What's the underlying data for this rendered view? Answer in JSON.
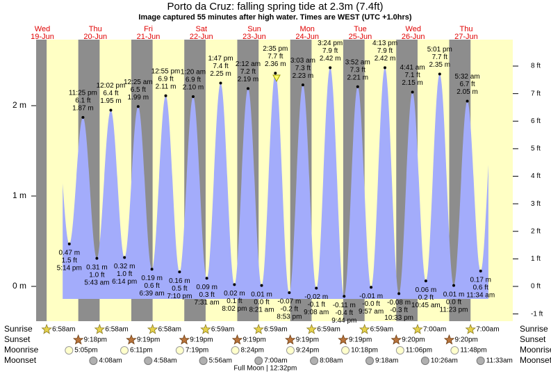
{
  "chart_data": {
    "type": "tide",
    "title": "Porto da Cruz: falling  spring tide at 2.3m (7.4ft)",
    "subtitle": "Image captured 55 minutes after high water. Times are WEST (UTC +1.0hrs)",
    "days": [
      {
        "weekday": "Wed",
        "date": "19-Jun"
      },
      {
        "weekday": "Thu",
        "date": "20-Jun"
      },
      {
        "weekday": "Fri",
        "date": "21-Jun"
      },
      {
        "weekday": "Sat",
        "date": "22-Jun"
      },
      {
        "weekday": "Sun",
        "date": "23-Jun"
      },
      {
        "weekday": "Mon",
        "date": "24-Jun"
      },
      {
        "weekday": "Tue",
        "date": "25-Jun"
      },
      {
        "weekday": "Wed",
        "date": "26-Jun"
      },
      {
        "weekday": "Thu",
        "date": "27-Jun"
      }
    ],
    "tides": [
      {
        "date": "19-Jun",
        "time": "5:14 pm",
        "value": 0.47,
        "value_label": "0.47 m",
        "ft": 1.5,
        "ft_label": "1.5 ft"
      },
      {
        "date": "19-Jun",
        "time": "11:25 pm",
        "value": 1.87,
        "value_label": "1.87 m",
        "ft": 6.1,
        "ft_label": "6.1 ft"
      },
      {
        "date": "20-Jun",
        "time": "5:43 am",
        "value": 0.31,
        "value_label": "0.31 m",
        "ft": 1.0,
        "ft_label": "1.0 ft"
      },
      {
        "date": "20-Jun",
        "time": "12:02 pm",
        "value": 1.95,
        "value_label": "1.95 m",
        "ft": 6.4,
        "ft_label": "6.4 ft"
      },
      {
        "date": "20-Jun",
        "time": "6:14 pm",
        "value": 0.32,
        "value_label": "0.32 m",
        "ft": 1.0,
        "ft_label": "1.0 ft"
      },
      {
        "date": "21-Jun",
        "time": "12:25 am",
        "value": 1.99,
        "value_label": "1.99 m",
        "ft": 6.5,
        "ft_label": "6.5 ft"
      },
      {
        "date": "21-Jun",
        "time": "6:39 am",
        "value": 0.19,
        "value_label": "0.19 m",
        "ft": 0.6,
        "ft_label": "0.6 ft"
      },
      {
        "date": "21-Jun",
        "time": "12:55 pm",
        "value": 2.11,
        "value_label": "2.11 m",
        "ft": 6.9,
        "ft_label": "6.9 ft"
      },
      {
        "date": "21-Jun",
        "time": "7:10 pm",
        "value": 0.16,
        "value_label": "0.16 m",
        "ft": 0.5,
        "ft_label": "0.5 ft"
      },
      {
        "date": "22-Jun",
        "time": "1:20 am",
        "value": 2.1,
        "value_label": "2.10 m",
        "ft": 6.9,
        "ft_label": "6.9 ft"
      },
      {
        "date": "22-Jun",
        "time": "7:31 am",
        "value": 0.09,
        "value_label": "0.09 m",
        "ft": 0.3,
        "ft_label": "0.3 ft"
      },
      {
        "date": "22-Jun",
        "time": "1:47 pm",
        "value": 2.25,
        "value_label": "2.25 m",
        "ft": 7.4,
        "ft_label": "7.4 ft"
      },
      {
        "date": "22-Jun",
        "time": "8:02 pm",
        "value": 0.02,
        "value_label": "0.02 m",
        "ft": 0.1,
        "ft_label": "0.1 ft"
      },
      {
        "date": "23-Jun",
        "time": "2:12 am",
        "value": 2.19,
        "value_label": "2.19 m",
        "ft": 7.2,
        "ft_label": "7.2 ft"
      },
      {
        "date": "23-Jun",
        "time": "8:21 am",
        "value": 0.01,
        "value_label": "0.01 m",
        "ft": 0.0,
        "ft_label": "0.0 ft"
      },
      {
        "date": "23-Jun",
        "time": "2:35 pm",
        "value": 2.36,
        "value_label": "2.36 m",
        "ft": 7.7,
        "ft_label": "7.7 ft"
      },
      {
        "date": "23-Jun",
        "time": "8:53 pm",
        "value": -0.07,
        "value_label": "-0.07 m",
        "ft": -0.2,
        "ft_label": "-0.2 ft"
      },
      {
        "date": "24-Jun",
        "time": "3:03 am",
        "value": 2.23,
        "value_label": "2.23 m",
        "ft": 7.3,
        "ft_label": "7.3 ft"
      },
      {
        "date": "24-Jun",
        "time": "9:08 am",
        "value": -0.02,
        "value_label": "-0.02 m",
        "ft": -0.1,
        "ft_label": "-0.1 ft"
      },
      {
        "date": "24-Jun",
        "time": "3:24 pm",
        "value": 2.42,
        "value_label": "2.42 m",
        "ft": 7.9,
        "ft_label": "7.9 ft"
      },
      {
        "date": "24-Jun",
        "time": "9:44 pm",
        "value": -0.11,
        "value_label": "-0.11 m",
        "ft": -0.4,
        "ft_label": "-0.4 ft"
      },
      {
        "date": "25-Jun",
        "time": "3:52 am",
        "value": 2.21,
        "value_label": "2.21 m",
        "ft": 7.3,
        "ft_label": "7.3 ft"
      },
      {
        "date": "25-Jun",
        "time": "9:57 am",
        "value": -0.01,
        "value_label": "-0.01 m",
        "ft": -0.0,
        "ft_label": "-0.0 ft"
      },
      {
        "date": "25-Jun",
        "time": "4:13 pm",
        "value": 2.42,
        "value_label": "2.42 m",
        "ft": 7.9,
        "ft_label": "7.9 ft"
      },
      {
        "date": "25-Jun",
        "time": "10:33 pm",
        "value": -0.08,
        "value_label": "-0.08 m",
        "ft": -0.3,
        "ft_label": "-0.3 ft"
      },
      {
        "date": "26-Jun",
        "time": "4:41 am",
        "value": 2.15,
        "value_label": "2.15 m",
        "ft": 7.1,
        "ft_label": "7.1 ft"
      },
      {
        "date": "26-Jun",
        "time": "10:45 am",
        "value": 0.06,
        "value_label": "0.06 m",
        "ft": 0.2,
        "ft_label": "0.2 ft"
      },
      {
        "date": "26-Jun",
        "time": "5:01 pm",
        "value": 2.35,
        "value_label": "2.35 m",
        "ft": 7.7,
        "ft_label": "7.7 ft"
      },
      {
        "date": "26-Jun",
        "time": "11:23 pm",
        "value": 0.01,
        "value_label": "0.01 m",
        "ft": 0.0,
        "ft_label": "0.0 ft"
      },
      {
        "date": "27-Jun",
        "time": "5:32 am",
        "value": 2.05,
        "value_label": "2.05 m",
        "ft": 6.7,
        "ft_label": "6.7 ft"
      },
      {
        "date": "27-Jun",
        "time": "11:34 am",
        "value": 0.17,
        "value_label": "0.17 m",
        "ft": 0.6,
        "ft_label": "0.6 ft"
      }
    ],
    "ylim": [
      -0.385,
      2.731
    ],
    "yticks": [
      {
        "value": 0,
        "label": "0 m"
      },
      {
        "value": 1,
        "label": "1 m"
      },
      {
        "value": 2,
        "label": "2 m"
      }
    ],
    "y2lim": [
      -1.262,
      8.96
    ],
    "y2ticks": [
      {
        "value": -1,
        "label": "-1 ft"
      },
      {
        "value": 0,
        "label": "0 ft"
      },
      {
        "value": 1,
        "label": "1 ft"
      },
      {
        "value": 2,
        "label": "2 ft"
      },
      {
        "value": 3,
        "label": "3 ft"
      },
      {
        "value": 4,
        "label": "4 ft"
      },
      {
        "value": 5,
        "label": "5 ft"
      },
      {
        "value": 6,
        "label": "6 ft"
      },
      {
        "value": 7,
        "label": "7 ft"
      },
      {
        "value": 8,
        "label": "8 ft"
      }
    ],
    "area_color": "#a3acfb",
    "day_color": "#ffffc4",
    "night_color": "#8d8d8d",
    "rows": {
      "sunrise": "Sunrise",
      "sunset": "Sunset",
      "moonrise": "Moonrise",
      "moonset": "Moonset"
    },
    "sunrise": [
      {
        "date": "19-Jun",
        "time": "6:58am"
      },
      {
        "date": "20-Jun",
        "time": "6:58am"
      },
      {
        "date": "21-Jun",
        "time": "6:58am"
      },
      {
        "date": "22-Jun",
        "time": "6:59am"
      },
      {
        "date": "23-Jun",
        "time": "6:59am"
      },
      {
        "date": "24-Jun",
        "time": "6:59am"
      },
      {
        "date": "25-Jun",
        "time": "6:59am"
      },
      {
        "date": "26-Jun",
        "time": "7:00am"
      },
      {
        "date": "27-Jun",
        "time": "7:00am"
      }
    ],
    "sunset": [
      {
        "date": "19-Jun",
        "time": "9:18pm"
      },
      {
        "date": "20-Jun",
        "time": "9:19pm"
      },
      {
        "date": "21-Jun",
        "time": "9:19pm"
      },
      {
        "date": "22-Jun",
        "time": "9:19pm"
      },
      {
        "date": "23-Jun",
        "time": "9:19pm"
      },
      {
        "date": "24-Jun",
        "time": "9:19pm"
      },
      {
        "date": "25-Jun",
        "time": "9:20pm"
      },
      {
        "date": "26-Jun",
        "time": "9:20pm"
      }
    ],
    "moonrise": [
      {
        "date": "19-Jun",
        "time": "5:05pm"
      },
      {
        "date": "20-Jun",
        "time": "6:11pm"
      },
      {
        "date": "21-Jun",
        "time": "7:19pm"
      },
      {
        "date": "22-Jun",
        "time": "8:24pm"
      },
      {
        "date": "23-Jun",
        "time": "9:24pm"
      },
      {
        "date": "24-Jun",
        "time": "10:18pm"
      },
      {
        "date": "25-Jun",
        "time": "11:06pm"
      },
      {
        "date": "26-Jun",
        "time": "11:48pm"
      }
    ],
    "moonset": [
      {
        "date": "20-Jun",
        "time": "4:08am"
      },
      {
        "date": "21-Jun",
        "time": "4:58am"
      },
      {
        "date": "22-Jun",
        "time": "5:56am"
      },
      {
        "date": "23-Jun",
        "time": "7:00am"
      },
      {
        "date": "24-Jun",
        "time": "8:08am"
      },
      {
        "date": "25-Jun",
        "time": "9:18am"
      },
      {
        "date": "26-Jun",
        "time": "10:26am"
      },
      {
        "date": "27-Jun",
        "time": "11:33am"
      }
    ],
    "moon_phase": {
      "date": "23-Jun",
      "time": "12:32pm",
      "label": "Full Moon | 12:32pm"
    }
  }
}
